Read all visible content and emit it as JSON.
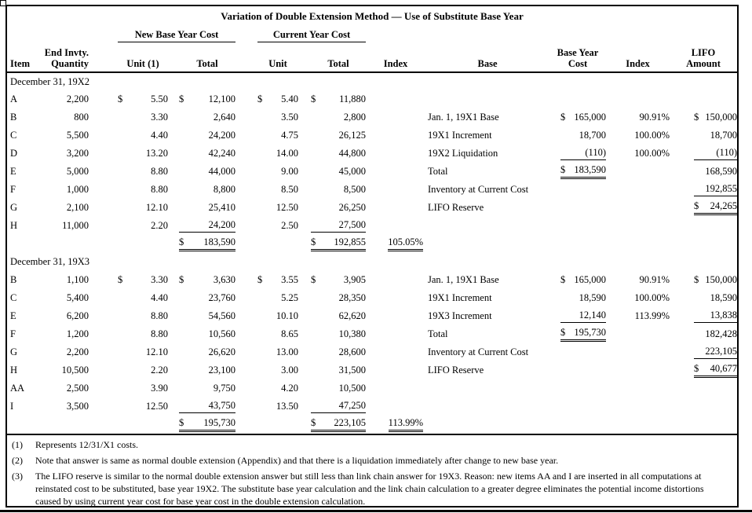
{
  "title": "Variation of Double Extension Method — Use of Substitute Base Year",
  "groups": {
    "g1": "New Base Year Cost",
    "g2": "Current Year Cost"
  },
  "columns": {
    "item": "Item",
    "qty1": "End Invty.",
    "qty2": "Quantity",
    "unit1": "Unit (1)",
    "total1": "Total",
    "unit2": "Unit",
    "total2": "Total",
    "index1": "Index",
    "base": "Base",
    "byc1": "Base Year",
    "byc2": "Cost",
    "index2": "Index",
    "lifo1": "LIFO",
    "lifo2": "Amount"
  },
  "sections": [
    {
      "label": "December 31, 19X2",
      "rows": [
        {
          "item": "A",
          "qty": "2,200",
          "unit1_d": "$",
          "unit1": "5.50",
          "total1_d": "$",
          "total1": "12,100",
          "unit2_d": "$",
          "unit2": "5.40",
          "total2_d": "$",
          "total2": "11,880"
        },
        {
          "item": "B",
          "qty": "800",
          "unit1": "3.30",
          "total1": "2,640",
          "unit2": "3.50",
          "total2": "2,800",
          "base": "Jan. 1, 19X1 Base",
          "byc_d": "$",
          "byc": "165,000",
          "idx2": "90.91%",
          "lifo_d": "$",
          "lifo": "150,000"
        },
        {
          "item": "C",
          "qty": "5,500",
          "unit1": "4.40",
          "total1": "24,200",
          "unit2": "4.75",
          "total2": "26,125",
          "base": "19X1 Increment",
          "byc": "18,700",
          "idx2": "100.00%",
          "lifo": "18,700"
        },
        {
          "item": "D",
          "qty": "3,200",
          "unit1": "13.20",
          "total1": "42,240",
          "unit2": "14.00",
          "total2": "44,800",
          "base": "19X2 Liquidation",
          "byc": "(110)",
          "byc_u": "u",
          "idx2": "100.00%",
          "lifo": "(110)",
          "lifo_u": "u"
        },
        {
          "item": "E",
          "qty": "5,000",
          "unit1": "8.80",
          "total1": "44,000",
          "unit2": "9.00",
          "total2": "45,000",
          "base": "Total",
          "byc_d": "$",
          "byc": "183,590",
          "byc_u": "uu",
          "lifo": "168,590"
        },
        {
          "item": "F",
          "qty": "1,000",
          "unit1": "8.80",
          "total1": "8,800",
          "unit2": "8.50",
          "total2": "8,500",
          "base": "Inventory at Current Cost",
          "lifo": "192,855",
          "lifo_u": "u"
        },
        {
          "item": "G",
          "qty": "2,100",
          "unit1": "12.10",
          "total1": "25,410",
          "unit2": "12.50",
          "total2": "26,250",
          "base": "LIFO Reserve",
          "lifo_d": "$",
          "lifo": "24,265",
          "lifo_u": "uu",
          "lifo_sup": "②"
        },
        {
          "item": "H",
          "qty": "11,000",
          "unit1": "2.20",
          "total1": "24,200",
          "total1_u": "u",
          "unit2": "2.50",
          "total2": "27,500",
          "total2_u": "u"
        },
        {
          "total1_d": "$",
          "total1": "183,590",
          "total1_u": "uu",
          "total2_d": "$",
          "total2": "192,855",
          "total2_u": "uu",
          "idx1": "105.05%",
          "idx1_u": "uu"
        }
      ]
    },
    {
      "label": "December 31, 19X3",
      "rows": [
        {
          "item": "B",
          "qty": "1,100",
          "unit1_d": "$",
          "unit1": "3.30",
          "total1_d": "$",
          "total1": "3,630",
          "unit2_d": "$",
          "unit2": "3.55",
          "total2_d": "$",
          "total2": "3,905",
          "base": "Jan. 1, 19X1 Base",
          "byc_d": "$",
          "byc": "165,000",
          "idx2": "90.91%",
          "lifo_d": "$",
          "lifo": "150,000"
        },
        {
          "item": "C",
          "qty": "5,400",
          "unit1": "4.40",
          "total1": "23,760",
          "unit2": "5.25",
          "total2": "28,350",
          "base": "19X1 Increment",
          "byc": "18,590",
          "idx2": "100.00%",
          "lifo": "18,590"
        },
        {
          "item": "E",
          "qty": "6,200",
          "unit1": "8.80",
          "total1": "54,560",
          "unit2": "10.10",
          "total2": "62,620",
          "base": "19X3 Increment",
          "byc": "12,140",
          "byc_u": "u",
          "idx2": "113.99%",
          "lifo": "13,838",
          "lifo_u": "u"
        },
        {
          "item": "F",
          "qty": "1,200",
          "unit1": "8.80",
          "total1": "10,560",
          "unit2": "8.65",
          "total2": "10,380",
          "base": "Total",
          "byc_d": "$",
          "byc": "195,730",
          "byc_u": "uu",
          "lifo": "182,428"
        },
        {
          "item": "G",
          "qty": "2,200",
          "unit1": "12.10",
          "total1": "26,620",
          "unit2": "13.00",
          "total2": "28,600",
          "base": "Inventory at Current Cost",
          "lifo": "223,105",
          "lifo_u": "u"
        },
        {
          "item": "H",
          "qty": "10,500",
          "unit1": "2.20",
          "total1": "23,100",
          "unit2": "3.00",
          "total2": "31,500",
          "base": "LIFO Reserve",
          "lifo_d": "$",
          "lifo": "40,677",
          "lifo_u": "uu",
          "lifo_sup": "③"
        },
        {
          "item": "AA",
          "qty": "2,500",
          "unit1": "3.90",
          "total1": "9,750",
          "unit2": "4.20",
          "total2": "10,500"
        },
        {
          "item": "I",
          "qty": "3,500",
          "unit1": "12.50",
          "total1": "43,750",
          "total1_u": "u",
          "unit2": "13.50",
          "total2": "47,250",
          "total2_u": "u"
        },
        {
          "total1_d": "$",
          "total1": "195,730",
          "total1_u": "uu",
          "total2_d": "$",
          "total2": "223,105",
          "total2_u": "uu",
          "idx1": "113.99%",
          "idx1_u": "uu"
        }
      ]
    }
  ],
  "footnotes": [
    {
      "num": "(1)",
      "text": "Represents 12/31/X1 costs."
    },
    {
      "num": "(2)",
      "text": "Note that answer is same as normal double extension (Appendix) and that there is a liquidation immediately after change to new base year."
    },
    {
      "num": "(3)",
      "text": "The LIFO reserve is similar to the normal double extension answer but still less than link chain answer for 19X3.  Reason:  new items AA and I are inserted in all computations at reinstated cost to be substituted, base year 19X2.  The substitute base year calculation and the link chain calculation to a greater degree eliminates the potential income distortions caused by using current year cost for base year cost in the double extension calculation."
    }
  ]
}
